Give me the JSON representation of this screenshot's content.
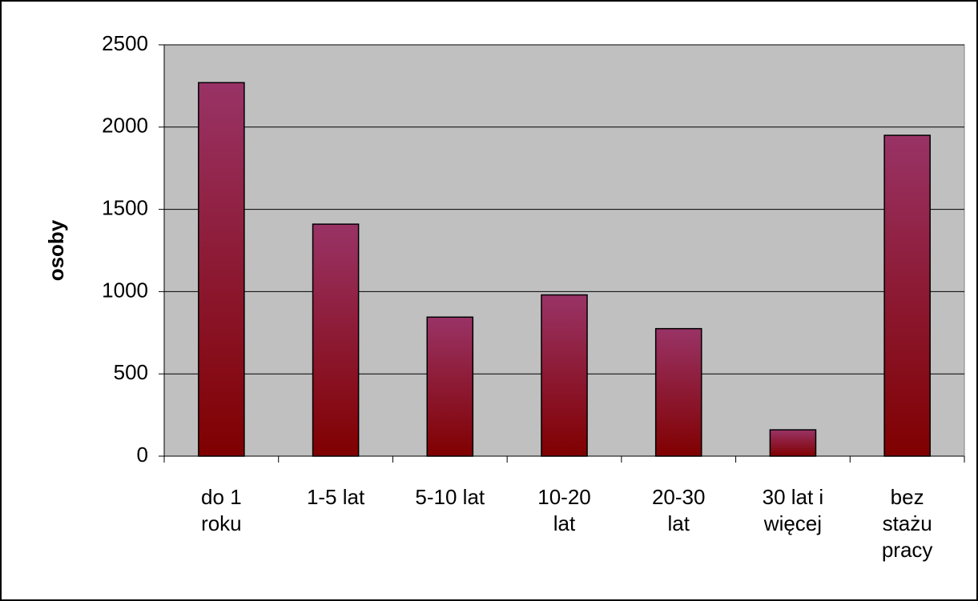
{
  "chart_data": {
    "type": "bar",
    "ylabel": "osoby",
    "categories": [
      "do 1\nroku",
      "1-5 lat",
      "5-10 lat",
      "10-20\nlat",
      "20-30\nlat",
      "30 lat i\nwięcej",
      "bez\nstażu\npracy"
    ],
    "values": [
      2270,
      1410,
      845,
      980,
      775,
      160,
      1950
    ],
    "color": "#993366",
    "ylim": [
      0,
      2500
    ],
    "yticks": [
      0,
      500,
      1000,
      1500,
      2000,
      2500
    ],
    "grid": true
  }
}
